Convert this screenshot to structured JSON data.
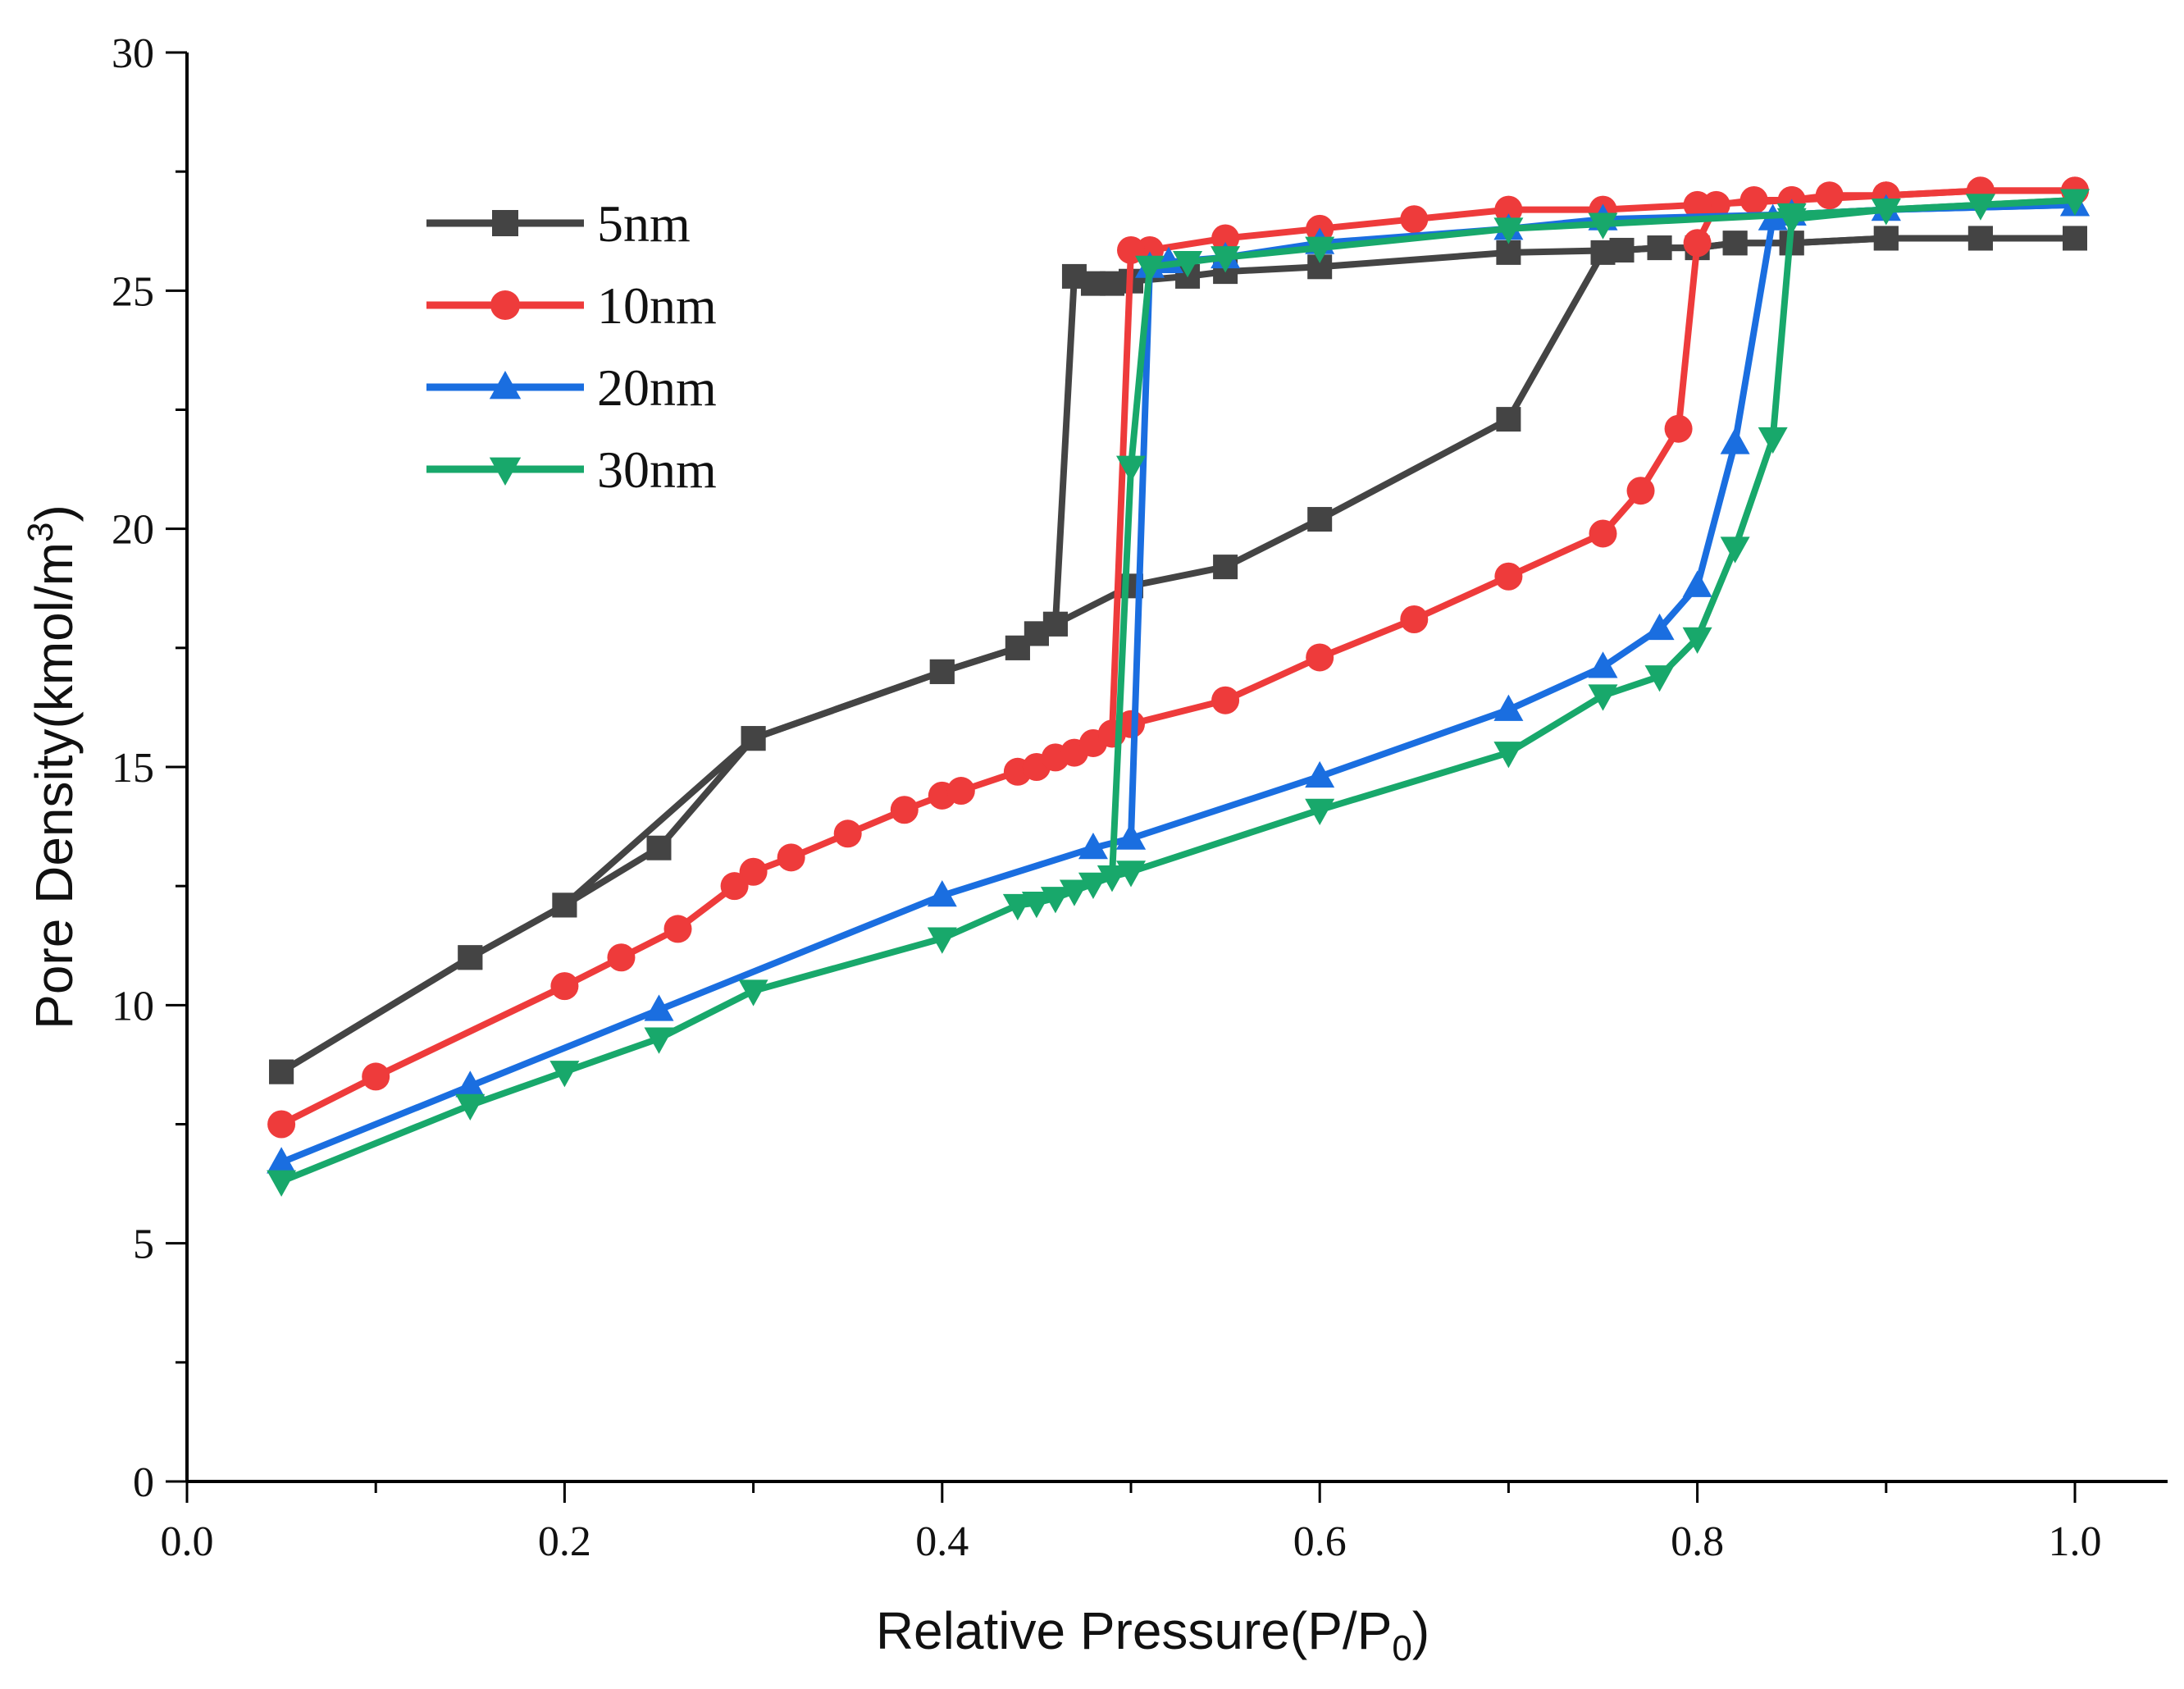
{
  "chart_data": {
    "type": "line",
    "title": "",
    "xlabel": "Relative Pressure(P/P",
    "xlabel_subscript": "0",
    "xlabel_suffix": ")",
    "ylabel": "Pore Density(kmol/m",
    "ylabel_superscript": "3",
    "ylabel_suffix": ")",
    "xlim": [
      0.0,
      1.05
    ],
    "ylim": [
      0,
      30
    ],
    "x_ticks": [
      0.0,
      0.2,
      0.4,
      0.6,
      0.8,
      1.0
    ],
    "x_tick_labels": [
      "0.0",
      "0.2",
      "0.4",
      "0.6",
      "0.8",
      "1.0"
    ],
    "y_ticks": [
      0,
      5,
      10,
      15,
      20,
      25,
      30
    ],
    "y_tick_labels": [
      "0",
      "5",
      "10",
      "15",
      "20",
      "25",
      "30"
    ],
    "grid": false,
    "legend_position": "top-left",
    "series": [
      {
        "name": "5nm",
        "color": "#444444",
        "marker": "square",
        "branches": [
          {
            "x": [
              0.05,
              0.15,
              0.2,
              0.25,
              0.3,
              0.4,
              0.44,
              0.45,
              0.46,
              0.5,
              0.55,
              0.6,
              0.7,
              0.75,
              0.76,
              0.78,
              0.8,
              0.82,
              0.85,
              0.9,
              0.95,
              1.0
            ],
            "y": [
              8.6,
              11.0,
              12.1,
              13.3,
              15.6,
              17.0,
              17.5,
              17.8,
              18.0,
              18.8,
              19.2,
              20.2,
              22.3,
              25.8,
              25.85,
              25.9,
              25.9,
              26.0,
              26.0,
              26.1,
              26.1,
              26.1
            ]
          },
          {
            "x": [
              1.0,
              0.95,
              0.9,
              0.85,
              0.82,
              0.8,
              0.78,
              0.76,
              0.7,
              0.6,
              0.55,
              0.53,
              0.5,
              0.49,
              0.48,
              0.47,
              0.46,
              0.45,
              0.44,
              0.4,
              0.3,
              0.2,
              0.15,
              0.05
            ],
            "y": [
              26.1,
              26.1,
              26.1,
              26.0,
              26.0,
              25.9,
              25.9,
              25.85,
              25.8,
              25.5,
              25.4,
              25.3,
              25.2,
              25.15,
              25.15,
              25.3,
              18.0,
              17.8,
              17.5,
              17.0,
              15.6,
              12.1,
              11.0,
              8.6
            ]
          }
        ]
      },
      {
        "name": "10nm",
        "color": "#ee3b3b",
        "marker": "circle",
        "branches": [
          {
            "x": [
              0.05,
              0.1,
              0.2,
              0.23,
              0.26,
              0.29,
              0.3,
              0.32,
              0.35,
              0.38,
              0.4,
              0.41,
              0.44,
              0.45,
              0.46,
              0.47,
              0.48,
              0.49,
              0.5,
              0.55,
              0.6,
              0.65,
              0.7,
              0.75,
              0.77,
              0.79,
              0.8,
              0.81,
              0.83,
              0.85,
              0.87,
              0.9,
              0.95,
              1.0
            ],
            "y": [
              7.5,
              8.5,
              10.4,
              11.0,
              11.6,
              12.5,
              12.8,
              13.1,
              13.6,
              14.1,
              14.4,
              14.5,
              14.9,
              15.0,
              15.2,
              15.3,
              15.5,
              15.7,
              15.9,
              16.4,
              17.3,
              18.1,
              19.0,
              19.9,
              20.8,
              22.1,
              26.0,
              26.8,
              26.9,
              26.9,
              27.0,
              27.0,
              27.1,
              27.1
            ]
          },
          {
            "x": [
              1.0,
              0.95,
              0.9,
              0.85,
              0.8,
              0.75,
              0.7,
              0.65,
              0.6,
              0.55,
              0.51,
              0.5,
              0.49
            ],
            "y": [
              27.1,
              27.1,
              27.0,
              26.9,
              26.8,
              26.7,
              26.7,
              26.5,
              26.3,
              26.1,
              25.85,
              25.85,
              15.7
            ]
          }
        ]
      },
      {
        "name": "20nm",
        "color": "#1a6ee0",
        "marker": "triangle-up",
        "branches": [
          {
            "x": [
              0.05,
              0.15,
              0.25,
              0.4,
              0.48,
              0.5,
              0.6,
              0.7,
              0.75,
              0.78,
              0.8,
              0.82,
              0.84,
              0.85,
              0.9,
              1.0
            ],
            "y": [
              6.7,
              8.3,
              9.9,
              12.3,
              13.3,
              13.5,
              14.8,
              16.2,
              17.1,
              17.9,
              18.8,
              21.8,
              26.5,
              26.6,
              26.7,
              26.8
            ]
          },
          {
            "x": [
              1.0,
              0.9,
              0.85,
              0.75,
              0.7,
              0.6,
              0.55,
              0.52,
              0.51,
              0.5
            ],
            "y": [
              26.8,
              26.7,
              26.6,
              26.5,
              26.3,
              26.0,
              25.7,
              25.6,
              25.5,
              13.5
            ]
          }
        ]
      },
      {
        "name": "30nm",
        "color": "#18a86b",
        "marker": "triangle-down",
        "branches": [
          {
            "x": [
              0.05,
              0.15,
              0.2,
              0.25,
              0.3,
              0.4,
              0.44,
              0.45,
              0.46,
              0.47,
              0.48,
              0.49,
              0.5,
              0.6,
              0.7,
              0.75,
              0.78,
              0.8,
              0.82,
              0.84,
              0.85,
              0.9,
              0.95,
              1.0
            ],
            "y": [
              6.3,
              7.9,
              8.6,
              9.3,
              10.3,
              11.4,
              12.1,
              12.15,
              12.25,
              12.4,
              12.55,
              12.7,
              12.8,
              14.1,
              15.3,
              16.5,
              16.9,
              17.7,
              19.6,
              21.9,
              26.5,
              26.7,
              26.8,
              26.9
            ]
          },
          {
            "x": [
              1.0,
              0.95,
              0.9,
              0.85,
              0.75,
              0.7,
              0.6,
              0.55,
              0.53,
              0.51,
              0.5,
              0.49
            ],
            "y": [
              26.9,
              26.8,
              26.7,
              26.6,
              26.4,
              26.3,
              25.9,
              25.7,
              25.6,
              25.5,
              21.3,
              12.7
            ]
          }
        ]
      }
    ]
  }
}
